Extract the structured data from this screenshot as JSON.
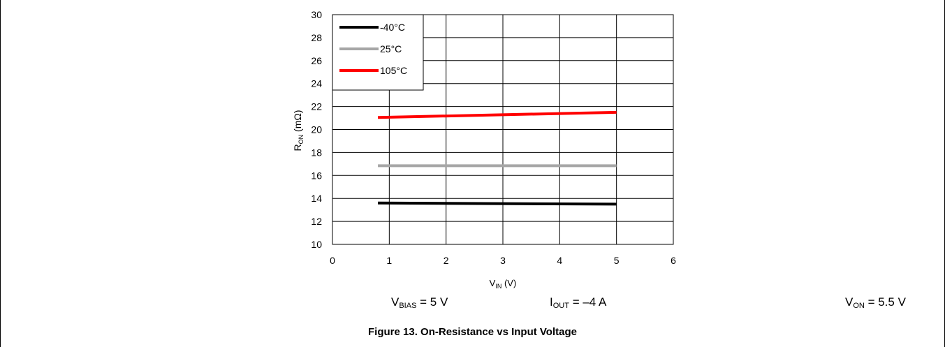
{
  "chart_data": {
    "type": "line",
    "title": "",
    "xlabel": {
      "main": "V",
      "sub": "IN",
      "unit": "(V)"
    },
    "ylabel": {
      "main": "R",
      "sub": "ON",
      "unit": "(mΩ)"
    },
    "xlim": [
      0,
      6
    ],
    "ylim": [
      10,
      30
    ],
    "xticks": [
      0,
      1,
      2,
      3,
      4,
      5,
      6
    ],
    "yticks": [
      10,
      12,
      14,
      16,
      18,
      20,
      22,
      24,
      26,
      28,
      30
    ],
    "grid": true,
    "legend_position": "top-left",
    "series": [
      {
        "name": "-40°C",
        "color": "#000000",
        "x": [
          0.8,
          5.0
        ],
        "y": [
          13.6,
          13.5
        ]
      },
      {
        "name": "25°C",
        "color": "#a6a6a6",
        "x": [
          0.8,
          5.0
        ],
        "y": [
          16.85,
          16.85
        ]
      },
      {
        "name": "105°C",
        "color": "#ff0000",
        "x": [
          0.8,
          5.0
        ],
        "y": [
          21.05,
          21.5
        ]
      }
    ]
  },
  "conditions": {
    "vbias": {
      "main": "V",
      "sub": "BIAS",
      "value": " = 5 V"
    },
    "iout": {
      "main": "I",
      "sub": "OUT",
      "value": " = –4 A"
    },
    "von": {
      "main": "V",
      "sub": "ON",
      "value": " = 5.5 V"
    }
  },
  "caption": "Figure 13. On-Resistance vs Input Voltage"
}
